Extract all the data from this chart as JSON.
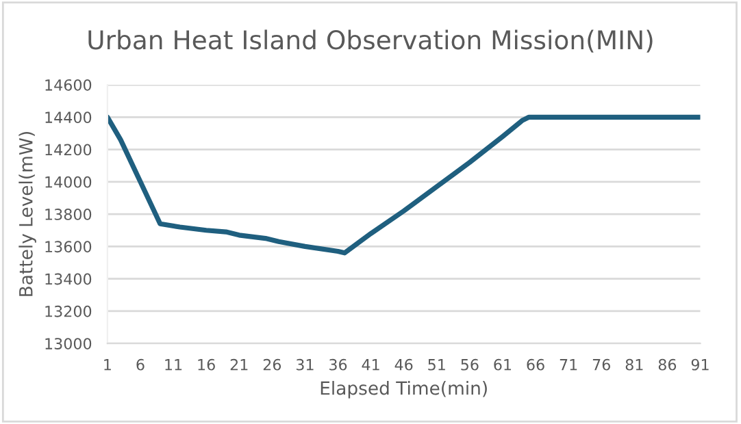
{
  "chart_data": {
    "type": "line",
    "title": "Urban Heat Island Observation Mission(MIN)",
    "xlabel": "Elapsed Time(min)",
    "ylabel": "Battely Level(mW)",
    "x": [
      1,
      3,
      6,
      9,
      12,
      16,
      19,
      21,
      25,
      27,
      31,
      36,
      37,
      41,
      46,
      51,
      56,
      61,
      64,
      65,
      91
    ],
    "series": [
      {
        "color": "#1f5f7f",
        "values": [
          14400,
          14260,
          14000,
          13740,
          13720,
          13700,
          13690,
          13670,
          13650,
          13630,
          13600,
          13570,
          13560,
          13680,
          13820,
          13970,
          14120,
          14280,
          14380,
          14400,
          14400
        ]
      }
    ],
    "xlim": [
      1,
      91
    ],
    "xticks": [
      1,
      6,
      11,
      16,
      21,
      26,
      31,
      36,
      41,
      46,
      51,
      56,
      61,
      66,
      71,
      76,
      81,
      86,
      91
    ],
    "ylim": [
      13000,
      14600
    ],
    "yticks": [
      13000,
      13200,
      13400,
      13600,
      13800,
      14000,
      14200,
      14400,
      14600
    ],
    "grid": "y",
    "marker": "none",
    "line_style": "solid"
  }
}
